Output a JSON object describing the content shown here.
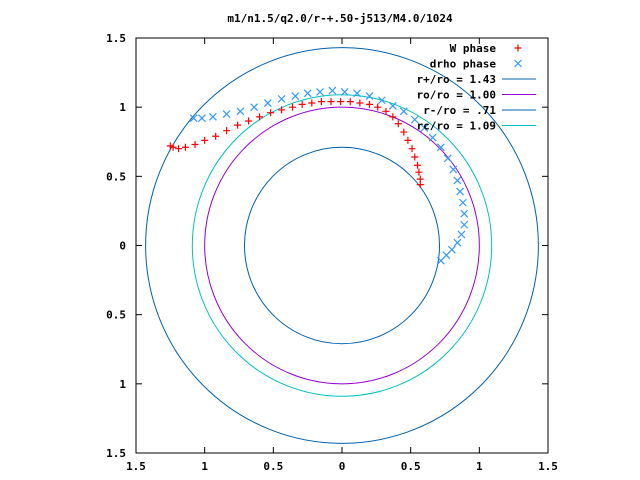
{
  "chart_data": {
    "type": "scatter",
    "title": "m1/n1.5/q2.0/r-+.50-j513/M4.0/1024",
    "xlim": [
      -1.5,
      1.5
    ],
    "ylim": [
      -1.5,
      1.5
    ],
    "x_tick_values": [
      -1.5,
      -1,
      -0.5,
      0,
      0.5,
      1,
      1.5
    ],
    "x_tick_labels": [
      "1.5",
      "1",
      "0.5",
      "0",
      "0.5",
      "1",
      "1.5"
    ],
    "y_tick_values": [
      1.5,
      1,
      0.5,
      0,
      -0.5,
      -1,
      -1.5
    ],
    "y_tick_labels": [
      "1.5",
      "1",
      "0.5",
      "0",
      "0.5",
      "1",
      "1.5"
    ],
    "grid": false,
    "legend_position": "top-right",
    "circles": [
      {
        "label": "r+/ro = 1.43",
        "radius": 1.43,
        "color": "#0060ad"
      },
      {
        "label": "ro/ro = 1.00",
        "radius": 1.0,
        "color": "#9400d3"
      },
      {
        "label": "r-/ro = .71",
        "radius": 0.71,
        "color": "#0060ad"
      },
      {
        "label": "rc/ro = 1.09",
        "radius": 1.09,
        "color": "#00c0c0"
      }
    ],
    "series": [
      {
        "name": "W phase",
        "marker": "+",
        "color": "#ff0000",
        "points": [
          [
            0.57,
            0.44
          ],
          [
            0.57,
            0.48
          ],
          [
            0.56,
            0.53
          ],
          [
            0.55,
            0.58
          ],
          [
            0.53,
            0.64
          ],
          [
            0.51,
            0.7
          ],
          [
            0.48,
            0.76
          ],
          [
            0.45,
            0.82
          ],
          [
            0.41,
            0.88
          ],
          [
            0.37,
            0.93
          ],
          [
            0.32,
            0.97
          ],
          [
            0.26,
            1.0
          ],
          [
            0.2,
            1.02
          ],
          [
            0.13,
            1.03
          ],
          [
            0.06,
            1.04
          ],
          [
            -0.01,
            1.04
          ],
          [
            -0.08,
            1.04
          ],
          [
            -0.15,
            1.04
          ],
          [
            -0.22,
            1.03
          ],
          [
            -0.29,
            1.02
          ],
          [
            -0.36,
            1.0
          ],
          [
            -0.44,
            0.98
          ],
          [
            -0.52,
            0.96
          ],
          [
            -0.6,
            0.93
          ],
          [
            -0.68,
            0.9
          ],
          [
            -0.76,
            0.87
          ],
          [
            -0.84,
            0.83
          ],
          [
            -0.92,
            0.79
          ],
          [
            -1.0,
            0.76
          ],
          [
            -1.07,
            0.73
          ],
          [
            -1.14,
            0.71
          ],
          [
            -1.19,
            0.7
          ],
          [
            -1.23,
            0.71
          ],
          [
            -1.25,
            0.72
          ]
        ]
      },
      {
        "name": "drho phase",
        "marker": "x",
        "color": "#3399ff",
        "points": [
          [
            0.72,
            -0.11
          ],
          [
            0.76,
            -0.07
          ],
          [
            0.8,
            -0.03
          ],
          [
            0.84,
            0.02
          ],
          [
            0.87,
            0.08
          ],
          [
            0.89,
            0.15
          ],
          [
            0.89,
            0.23
          ],
          [
            0.88,
            0.31
          ],
          [
            0.86,
            0.39
          ],
          [
            0.84,
            0.47
          ],
          [
            0.81,
            0.55
          ],
          [
            0.77,
            0.63
          ],
          [
            0.72,
            0.71
          ],
          [
            0.66,
            0.78
          ],
          [
            0.6,
            0.85
          ],
          [
            0.53,
            0.91
          ],
          [
            0.45,
            0.97
          ],
          [
            0.37,
            1.01
          ],
          [
            0.29,
            1.05
          ],
          [
            0.2,
            1.08
          ],
          [
            0.11,
            1.1
          ],
          [
            0.02,
            1.11
          ],
          [
            -0.07,
            1.12
          ],
          [
            -0.16,
            1.11
          ],
          [
            -0.25,
            1.1
          ],
          [
            -0.34,
            1.08
          ],
          [
            -0.44,
            1.06
          ],
          [
            -0.54,
            1.03
          ],
          [
            -0.64,
            1.0
          ],
          [
            -0.74,
            0.97
          ],
          [
            -0.84,
            0.95
          ],
          [
            -0.94,
            0.93
          ],
          [
            -1.02,
            0.92
          ],
          [
            -1.08,
            0.92
          ]
        ]
      }
    ]
  }
}
